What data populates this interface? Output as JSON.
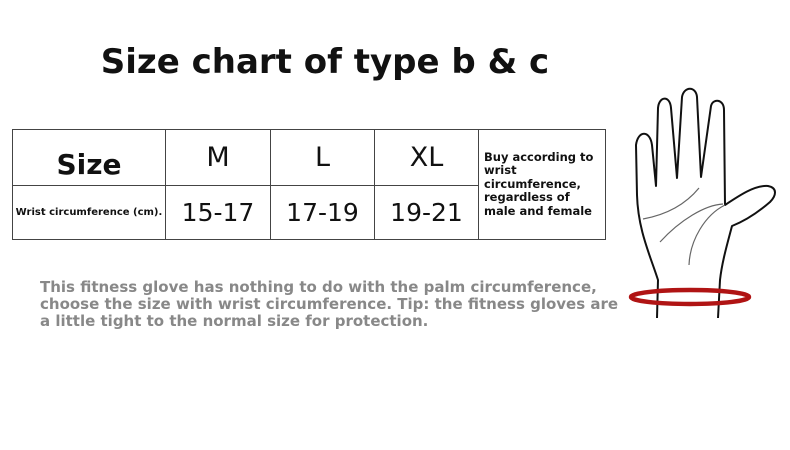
{
  "title": "Size chart of type b & c",
  "table": {
    "header": [
      "Size",
      "M",
      "L",
      "XL"
    ],
    "row_label": "Wrist circumference (cm).",
    "values": [
      "15-17",
      "17-19",
      "19-21"
    ],
    "note": "Buy according to wrist circumference, regardless of male and female"
  },
  "description": "This fitness glove has nothing to do with the palm circumference, choose the size with wrist circumference. Tip: the fitness gloves are a little tight to the normal size for protection.",
  "colors": {
    "wrist_ring": "#b01414",
    "text_gray": "#888888"
  },
  "illustration": "hand-with-wrist-ring"
}
